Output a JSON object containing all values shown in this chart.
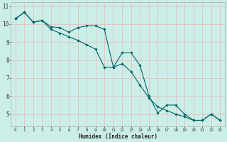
{
  "xlabel": "Humidex (Indice chaleur)",
  "background_color": "#cceee8",
  "grid_color": "#e8b8b8",
  "line_color": "#006666",
  "xlim": [
    -0.5,
    23.5
  ],
  "ylim": [
    4.3,
    11.2
  ],
  "yticks": [
    5,
    6,
    7,
    8,
    9,
    10,
    11
  ],
  "xticks": [
    0,
    1,
    2,
    3,
    4,
    5,
    6,
    7,
    8,
    9,
    10,
    11,
    12,
    13,
    14,
    15,
    16,
    17,
    18,
    19,
    20,
    21,
    22,
    23
  ],
  "line1_x": [
    0,
    1,
    2,
    3,
    4,
    5,
    6,
    7,
    8,
    9,
    10,
    11,
    12,
    13,
    14,
    15,
    16,
    17,
    18,
    19,
    20,
    21,
    22,
    23
  ],
  "line1_y": [
    10.3,
    10.65,
    10.1,
    10.2,
    9.85,
    9.8,
    9.55,
    9.8,
    9.9,
    9.9,
    9.7,
    7.6,
    8.4,
    8.4,
    7.7,
    6.0,
    5.05,
    5.5,
    5.5,
    5.0,
    4.65,
    4.65,
    5.0,
    4.65
  ],
  "line2_x": [
    0,
    1,
    2,
    3,
    4,
    5,
    6,
    7,
    8,
    9,
    10,
    11,
    12,
    13,
    14,
    15,
    16,
    17,
    18,
    19,
    20,
    21,
    22,
    23
  ],
  "line2_y": [
    10.3,
    10.65,
    10.1,
    10.2,
    9.7,
    9.5,
    9.3,
    9.1,
    8.85,
    8.6,
    7.6,
    7.6,
    7.8,
    7.35,
    6.6,
    5.9,
    5.4,
    5.2,
    5.0,
    4.85,
    4.65,
    4.65,
    5.0,
    4.65
  ]
}
